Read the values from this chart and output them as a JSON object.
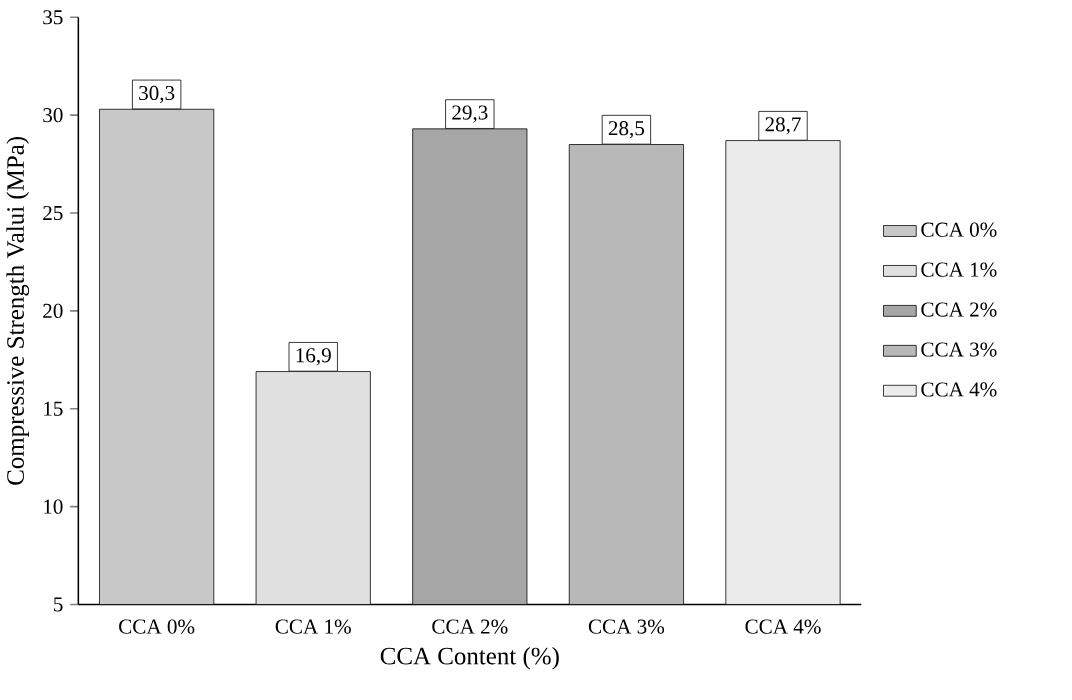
{
  "chart_data": {
    "type": "bar",
    "xlabel": "CCA Content (%)",
    "ylabel": "Compressive Strength Valui (MPa)",
    "categories": [
      "CCA 0%",
      "CCA 1%",
      "CCA 2%",
      "CCA 3%",
      "CCA 4%"
    ],
    "series": [
      {
        "name": "CCA 0%",
        "color": "#c8c8c8",
        "values": [
          30.3,
          null,
          null,
          null,
          null
        ],
        "value_labels": [
          "30,3",
          null,
          null,
          null,
          null
        ]
      },
      {
        "name": "CCA 1%",
        "color": "#e0e0e0",
        "values": [
          null,
          16.9,
          null,
          null,
          null
        ],
        "value_labels": [
          null,
          "16,9",
          null,
          null,
          null
        ]
      },
      {
        "name": "CCA 2%",
        "color": "#a6a6a6",
        "values": [
          null,
          null,
          29.3,
          null,
          null
        ],
        "value_labels": [
          null,
          null,
          "29,3",
          null,
          null
        ]
      },
      {
        "name": "CCA 3%",
        "color": "#b8b8b8",
        "values": [
          null,
          null,
          null,
          28.5,
          null
        ],
        "value_labels": [
          null,
          null,
          null,
          "28,5",
          null
        ]
      },
      {
        "name": "CCA 4%",
        "color": "#ececec",
        "values": [
          null,
          null,
          null,
          null,
          28.7
        ],
        "value_labels": [
          null,
          null,
          null,
          null,
          "28,7"
        ]
      }
    ],
    "ylim": [
      5,
      35
    ],
    "yticks": [
      5,
      10,
      15,
      20,
      25,
      30,
      35
    ],
    "grid": false,
    "legend": "right"
  }
}
